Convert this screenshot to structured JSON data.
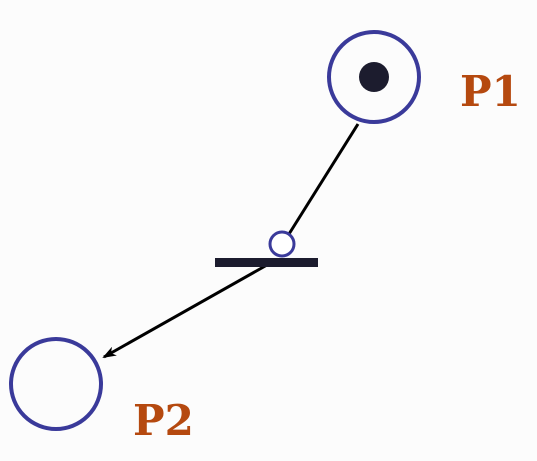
{
  "places": [
    {
      "id": "p1",
      "label": "P1",
      "tokens": 1
    },
    {
      "id": "p2",
      "label": "P2",
      "tokens": 0
    }
  ],
  "transition": {
    "id": "t1",
    "inhibitor_arc": true
  },
  "colors": {
    "place_stroke": "#3a3a9a",
    "token_fill": "#1c1c2e",
    "transition_fill": "#1c1c2e",
    "arc_stroke": "#000000",
    "label_color": "#b5490f",
    "background": "#fcfcfc"
  }
}
